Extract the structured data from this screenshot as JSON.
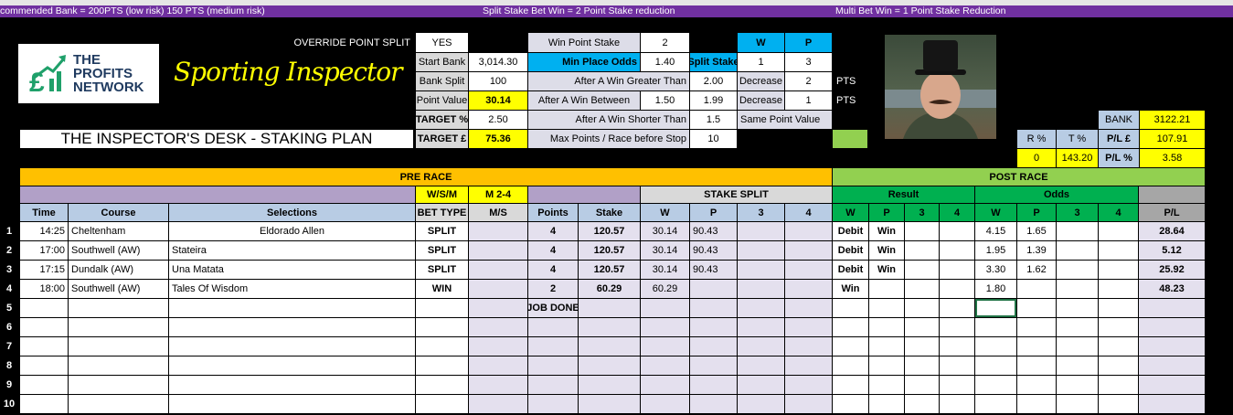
{
  "banner": {
    "left": "commended Bank = 200PTS (low risk) 150 PTS (medium risk)",
    "center": "Split Stake Bet Win = 2 Point Stake reduction",
    "right": "Multi Bet Win = 1 Point  Stake Reduction"
  },
  "logo": {
    "line1": "THE",
    "line2": "PROFITS",
    "line3": "NETWORK"
  },
  "brand_script": "Sporting Inspector",
  "sheet_title": "THE INSPECTOR'S DESK - STAKING PLAN",
  "settings": {
    "override_label": "OVERRIDE POINT SPLIT",
    "override_value": "YES",
    "start_bank_label": "Start Bank",
    "start_bank": "3,014.30",
    "bank_split_label": "Bank Split",
    "bank_split": "100",
    "point_value_label": "Point Value",
    "point_value": "30.14",
    "target_pct_label": "TARGET %",
    "target_pct": "2.50",
    "target_gbp_label": "TARGET £",
    "target_gbp": "75.36",
    "win_point_stake_label": "Win Point Stake",
    "win_point_stake": "2",
    "min_place_odds_label": "Min Place Odds",
    "min_place_odds": "1.40",
    "split_stake_label": "Split Stake",
    "w_label": "W",
    "p_label": "P",
    "split_w": "1",
    "split_p": "3",
    "greater_label": "After A Win Greater Than",
    "greater_value": "2.00",
    "decrease_label": "Decrease",
    "greater_decrease": "2",
    "pts": "PTS",
    "between_label": "After A Win Between",
    "between_low": "1.50",
    "between_high": "1.99",
    "between_decrease": "1",
    "shorter_label": "After A Win Shorter Than",
    "shorter_value": "1.5",
    "same_point_label": "Same Point Value",
    "max_points_label": "Max Points / Race before Stop",
    "max_points": "10"
  },
  "summary": {
    "bank_label": "BANK",
    "bank": "3122.21",
    "r_label": "R %",
    "t_label": "T %",
    "pl_gbp_label": "P/L  £",
    "pl_gbp": "107.91",
    "r_value": "0",
    "t_value": "143.20",
    "pl_pct_label": "P/L %",
    "pl_pct": "3.58"
  },
  "table": {
    "pre_race": "PRE RACE",
    "post_race": "POST RACE",
    "wsm": "W/S/M",
    "m24": "M 2-4",
    "stake_split": "STAKE SPLIT",
    "result": "Result",
    "odds": "Odds",
    "headers": [
      "Time",
      "Course",
      "Selections",
      "BET TYPE",
      "M/S",
      "Points",
      "Stake",
      "W",
      "P",
      "3",
      "4",
      "W",
      "P",
      "3",
      "4",
      "W",
      "P",
      "3",
      "4",
      "P/L"
    ],
    "rows": [
      [
        "14:25",
        "Cheltenham",
        "Eldorado Allen",
        "SPLIT",
        "",
        "4",
        "120.57",
        "30.14",
        "90.43",
        "",
        "",
        "Debit",
        "Win",
        "",
        "",
        "4.15",
        "1.65",
        "",
        "",
        "28.64"
      ],
      [
        "17:00",
        "Southwell (AW)",
        "Stateira",
        "SPLIT",
        "",
        "4",
        "120.57",
        "30.14",
        "90.43",
        "",
        "",
        "Debit",
        "Win",
        "",
        "",
        "1.95",
        "1.39",
        "",
        "",
        "5.12"
      ],
      [
        "17:15",
        "Dundalk (AW)",
        "Una Matata",
        "SPLIT",
        "",
        "4",
        "120.57",
        "30.14",
        "90.43",
        "",
        "",
        "Debit",
        "Win",
        "",
        "",
        "3.30",
        "1.62",
        "",
        "",
        "25.92"
      ],
      [
        "18:00",
        "Southwell (AW)",
        "Tales Of Wisdom",
        "WIN",
        "",
        "2",
        "60.29",
        "60.29",
        "",
        "",
        "",
        "Win",
        "",
        "",
        "",
        "1.80",
        "",
        "",
        "",
        "48.23"
      ],
      [
        "",
        "",
        "",
        "",
        "",
        "JOB DONE",
        "",
        "",
        "",
        "",
        "",
        "",
        "",
        "",
        "",
        "",
        "",
        "",
        "",
        ""
      ],
      [
        "",
        "",
        "",
        "",
        "",
        "",
        "",
        "",
        "",
        "",
        "",
        "",
        "",
        "",
        "",
        "",
        "",
        "",
        "",
        ""
      ],
      [
        "",
        "",
        "",
        "",
        "",
        "",
        "",
        "",
        "",
        "",
        "",
        "",
        "",
        "",
        "",
        "",
        "",
        "",
        "",
        ""
      ],
      [
        "",
        "",
        "",
        "",
        "",
        "",
        "",
        "",
        "",
        "",
        "",
        "",
        "",
        "",
        "",
        "",
        "",
        "",
        "",
        ""
      ],
      [
        "",
        "",
        "",
        "",
        "",
        "",
        "",
        "",
        "",
        "",
        "",
        "",
        "",
        "",
        "",
        "",
        "",
        "",
        "",
        ""
      ],
      [
        "",
        "",
        "",
        "",
        "",
        "",
        "",
        "",
        "",
        "",
        "",
        "",
        "",
        "",
        "",
        "",
        "",
        "",
        "",
        ""
      ]
    ],
    "row_numbers": [
      "1",
      "2",
      "3",
      "4",
      "5",
      "6",
      "7",
      "8",
      "9",
      "10"
    ]
  },
  "colors": {
    "banner": "#7030a0",
    "pre_race": "#ffc000",
    "post_race": "#92d050",
    "result": "#00b050",
    "highlight": "#ffff00",
    "blue": "#00b0f0"
  }
}
